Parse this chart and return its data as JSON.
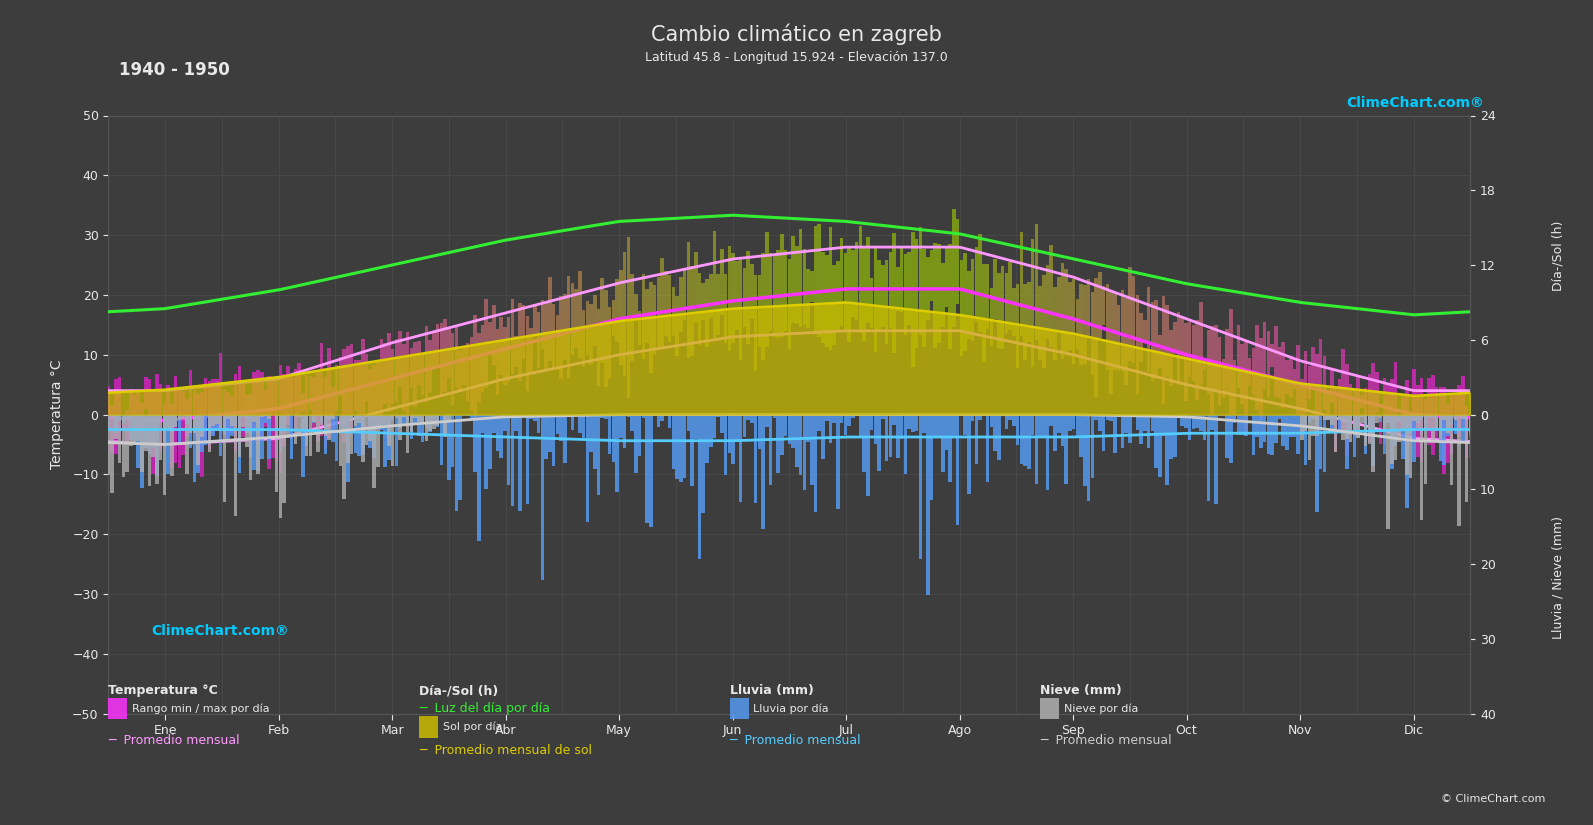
{
  "title": "Cambio climático en zagreb",
  "subtitle": "Latitud 45.8 - Longitud 15.924 - Elevación 137.0",
  "period": "1940 - 1950",
  "months": [
    "Ene",
    "Feb",
    "Mar",
    "Abr",
    "May",
    "Jun",
    "Jul",
    "Ago",
    "Sep",
    "Oct",
    "Nov",
    "Dic"
  ],
  "bg_color": "#3d3d3d",
  "grid_color": "#555555",
  "text_color": "#e8e8e8",
  "temp_avg": [
    -1,
    1,
    6,
    11,
    16,
    19,
    21,
    21,
    16,
    10,
    5,
    0
  ],
  "temp_max_avg": [
    4,
    6,
    12,
    17,
    22,
    26,
    28,
    28,
    23,
    16,
    9,
    4
  ],
  "temp_min_avg": [
    -5,
    -4,
    1,
    6,
    10,
    13,
    14,
    14,
    10,
    5,
    1,
    -4
  ],
  "temp_max_abs": [
    14,
    16,
    22,
    27,
    32,
    35,
    37,
    36,
    31,
    23,
    17,
    13
  ],
  "temp_min_abs": [
    -18,
    -15,
    -10,
    -4,
    2,
    6,
    8,
    8,
    2,
    -4,
    -10,
    -15
  ],
  "daylight_avg": [
    8.5,
    10,
    12,
    14,
    15.5,
    16,
    15.5,
    14.5,
    12.5,
    10.5,
    9,
    8
  ],
  "sunshine_avg": [
    2.0,
    3.0,
    4.5,
    6.0,
    7.5,
    8.5,
    9.0,
    8.0,
    6.5,
    4.5,
    2.5,
    1.5
  ],
  "rain_day_max": [
    8,
    8,
    10,
    12,
    14,
    14,
    12,
    12,
    12,
    10,
    10,
    8
  ],
  "snow_day_max": [
    12,
    10,
    6,
    1,
    0,
    0,
    0,
    0,
    0,
    0,
    4,
    10
  ],
  "rain_avg": [
    2.0,
    2.0,
    2.5,
    3.0,
    3.5,
    3.5,
    3.0,
    3.0,
    3.0,
    2.5,
    2.5,
    2.0
  ],
  "snow_avg": [
    4.0,
    3.0,
    1.5,
    0.3,
    0,
    0,
    0,
    0,
    0,
    0.3,
    1.5,
    3.5
  ],
  "temp_left_ticks": [
    50,
    40,
    30,
    20,
    10,
    0,
    -10,
    -20,
    -30,
    -40,
    -50
  ],
  "rain_right_ticks": [
    0,
    10,
    20,
    30,
    40
  ],
  "sun_right_ticks": [
    24,
    18,
    12,
    6,
    0
  ],
  "ylim_temp": [
    -50,
    50
  ],
  "xlim": [
    0,
    12
  ]
}
